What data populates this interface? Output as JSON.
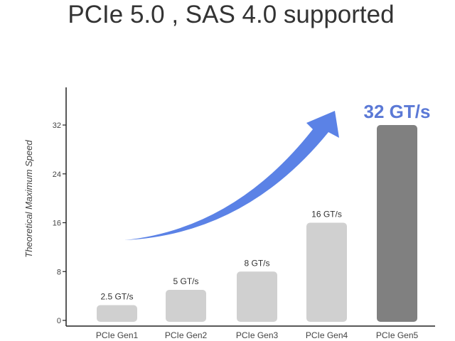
{
  "chart_data": {
    "type": "bar",
    "title": "PCIe 5.0 , SAS 4.0 supported",
    "xlabel": "",
    "ylabel": "Theoretical Maximum Speed",
    "categories": [
      "PCIe Gen1",
      "PCIe Gen2",
      "PCIe Gen3",
      "PCIe Gen4",
      "PCIe Gen5"
    ],
    "values": [
      2.5,
      5,
      8,
      16,
      32
    ],
    "data_labels": [
      "2.5 GT/s",
      "5 GT/s",
      "8 GT/s",
      "16 GT/s",
      "32 GT/s"
    ],
    "yticks": [
      0,
      8,
      16,
      24,
      32
    ],
    "ylim": [
      0,
      40
    ],
    "grid": false,
    "annotation": "upward arrow indicating speed growth",
    "colors": {
      "bar": "#d0d0d0",
      "highlight_bar": "#808080",
      "highlight_text": "#5b79d6",
      "arrow": "#5b82e6"
    }
  }
}
